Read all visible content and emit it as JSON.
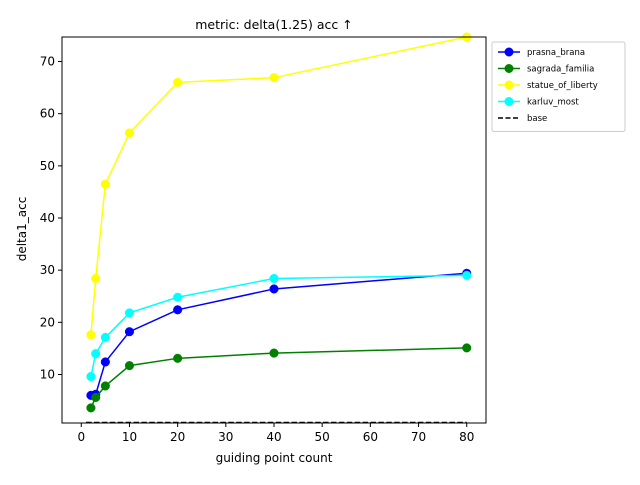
{
  "chart_data": {
    "type": "line",
    "title": "metric: delta(1.25) acc ↑",
    "xlabel": "guiding point count",
    "ylabel": "delta1_acc",
    "xlim": [
      -4,
      84
    ],
    "ylim": [
      0.7,
      74.7
    ],
    "xticks": [
      0,
      10,
      20,
      30,
      40,
      50,
      60,
      70,
      80
    ],
    "yticks": [
      10,
      20,
      30,
      40,
      50,
      60,
      70
    ],
    "grid": false,
    "legend_position": "outside-right-top",
    "x": [
      2,
      3,
      5,
      10,
      20,
      40,
      80
    ],
    "series": [
      {
        "name": "prasna_brana",
        "color": "#0000ff",
        "marker": "circle",
        "linestyle": "solid",
        "values": [
          6.0,
          6.2,
          12.4,
          18.2,
          22.4,
          26.4,
          29.4
        ]
      },
      {
        "name": "sagrada_familia",
        "color": "#008000",
        "marker": "circle",
        "linestyle": "solid",
        "values": [
          3.6,
          5.6,
          7.8,
          11.7,
          13.1,
          14.1,
          15.1
        ]
      },
      {
        "name": "statue_of_liberty",
        "color": "#ffff00",
        "marker": "circle",
        "linestyle": "solid",
        "values": [
          17.6,
          28.4,
          46.5,
          56.3,
          66.0,
          66.9,
          74.7
        ]
      },
      {
        "name": "karluv_most",
        "color": "#00ffff",
        "marker": "circle",
        "linestyle": "solid",
        "values": [
          9.6,
          14.0,
          17.1,
          21.8,
          24.8,
          28.4,
          29.0
        ]
      },
      {
        "name": "base",
        "color": "#000000",
        "marker": "none",
        "linestyle": "dashed",
        "x": [
          1,
          80
        ],
        "values": [
          0.8,
          0.8
        ]
      }
    ]
  }
}
